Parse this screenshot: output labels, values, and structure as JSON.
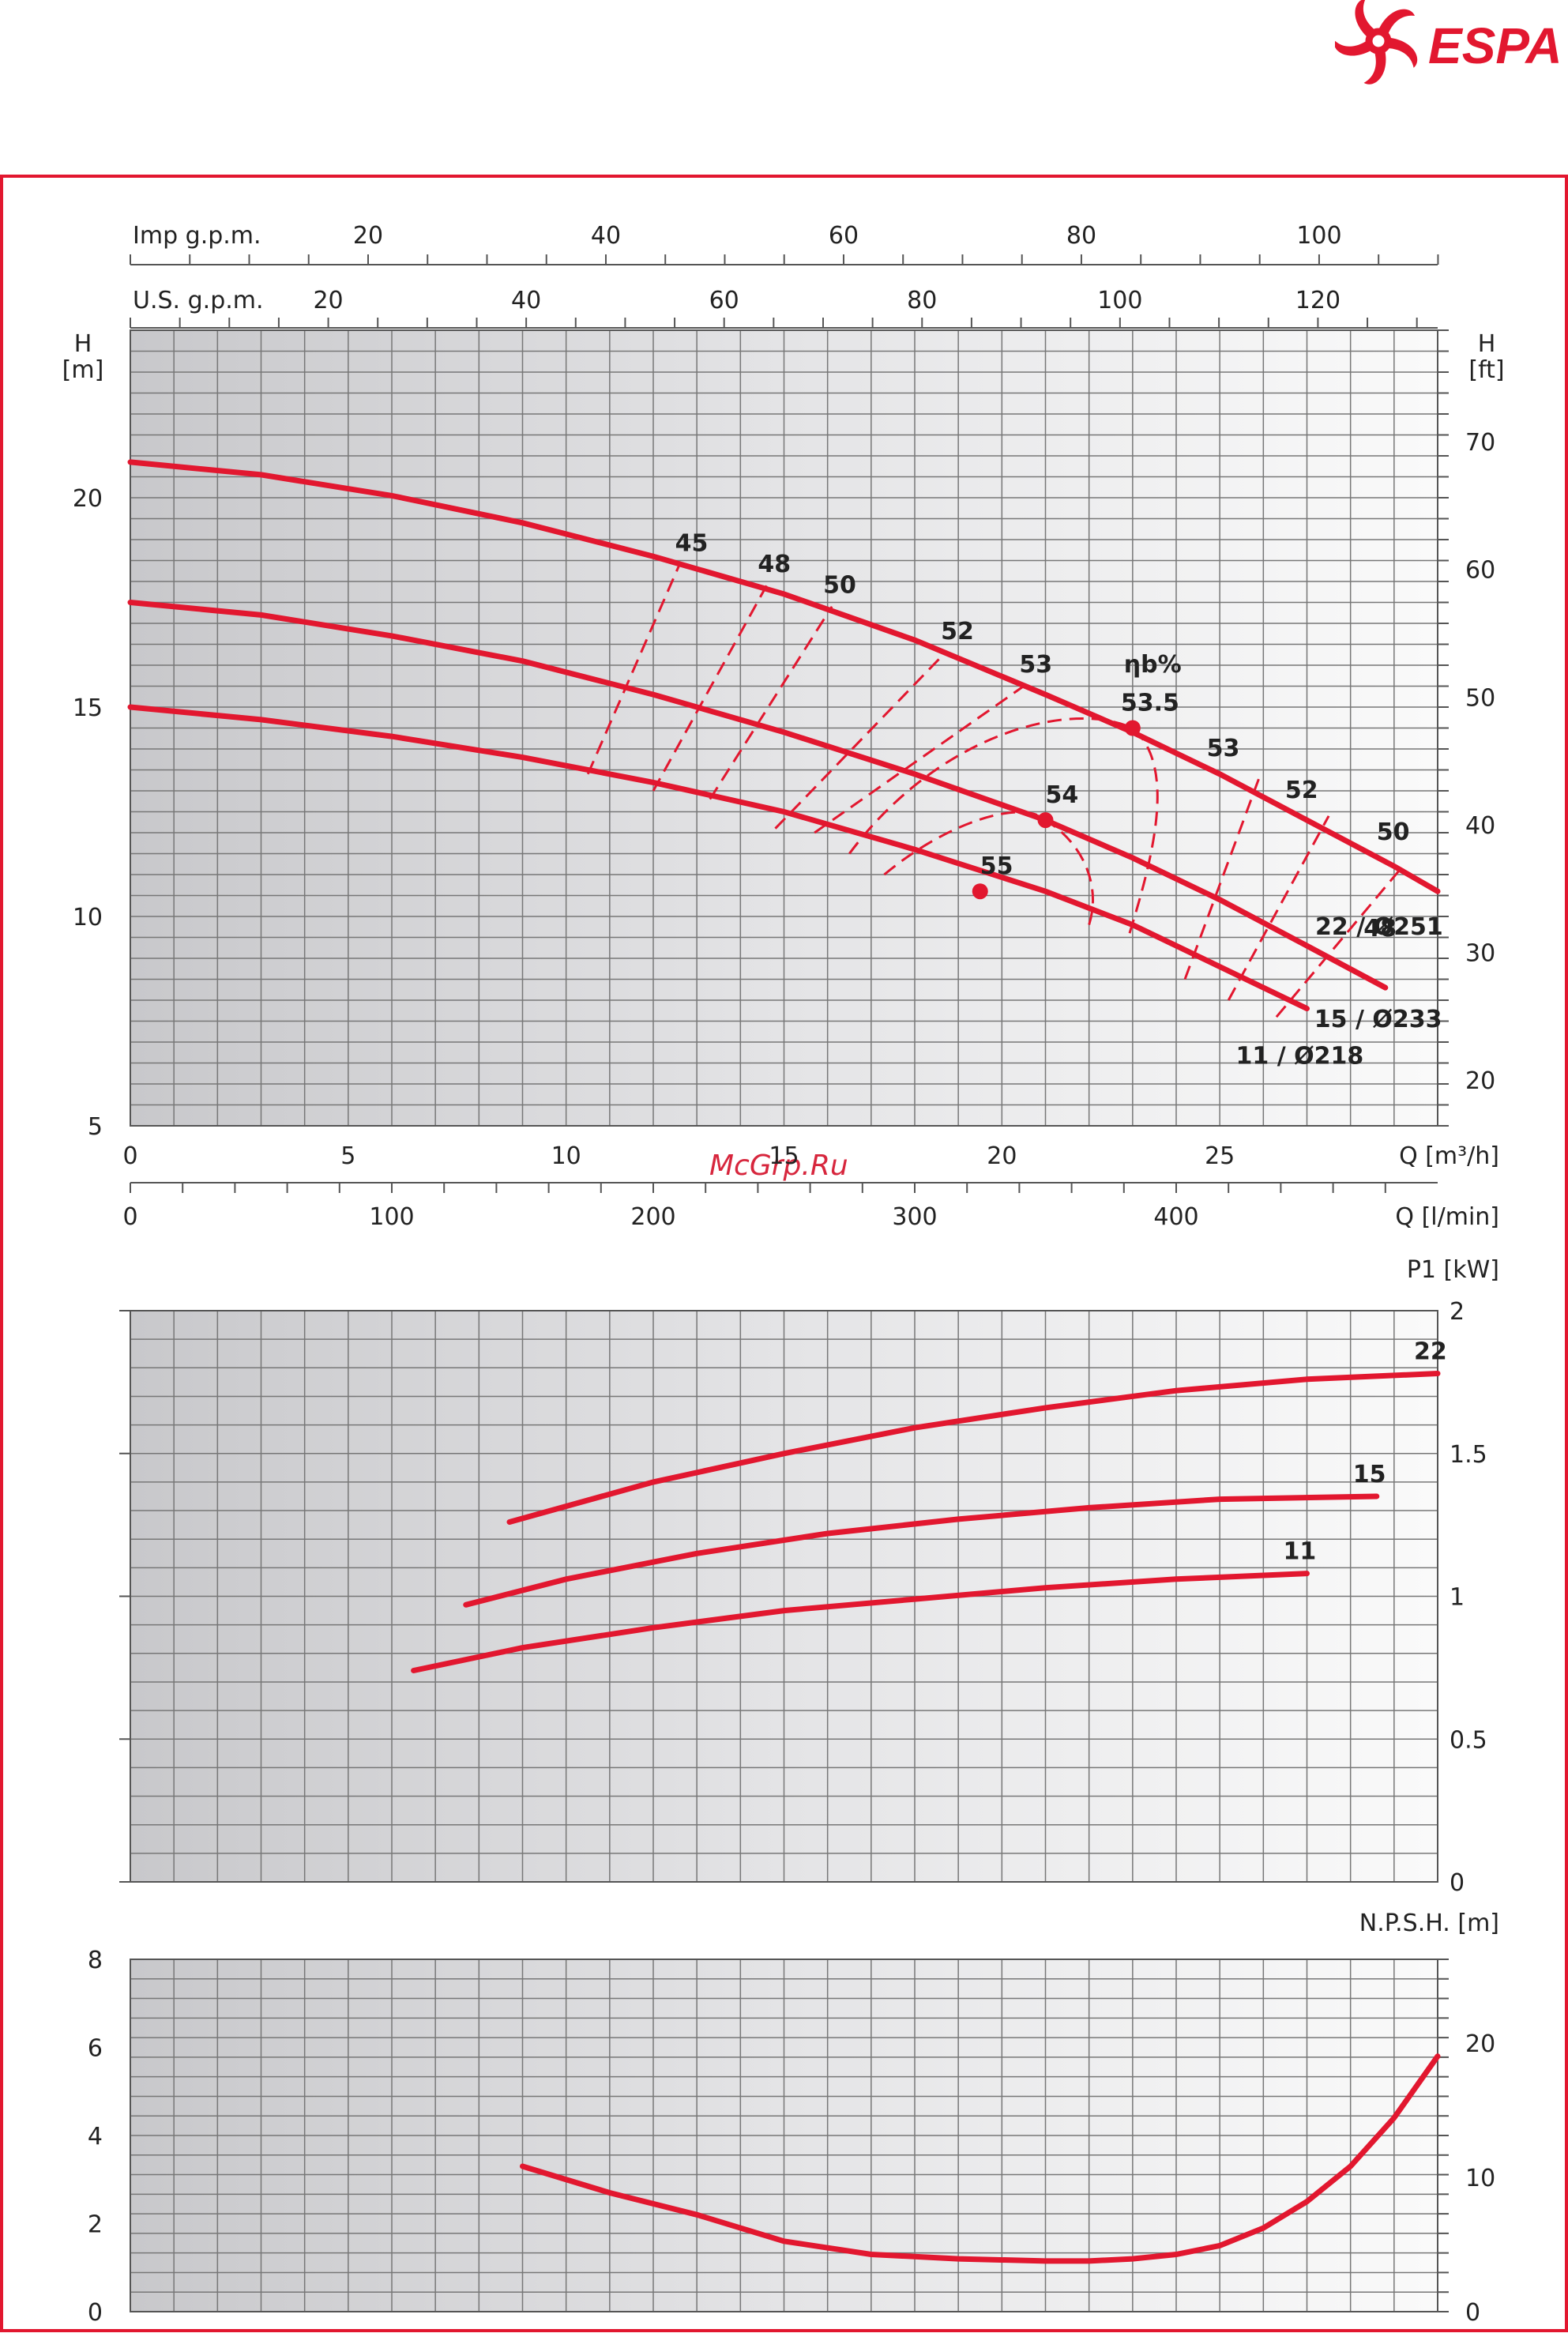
{
  "brand": {
    "name": "ESPA",
    "color": "#e2172f"
  },
  "watermark": "McGrp.Ru",
  "colors": {
    "curve": "#e2172f",
    "frame": "#e2172f",
    "grid": "#777777",
    "text": "#222222"
  },
  "chart_data": [
    {
      "type": "line",
      "id": "head",
      "x_unit": "Q [m³/h]",
      "x2_unit": "Q [l/min]",
      "top1_unit": "Imp g.p.m.",
      "top2_unit": "U.S. g.p.m.",
      "ylabel": "H\n[m]",
      "ylabel_right": "H\n[ft]",
      "xlim": [
        0,
        30
      ],
      "ylim": [
        5,
        24
      ],
      "x_ticks": [
        "0",
        "5",
        "10",
        "15",
        "20",
        "25"
      ],
      "x2_ticks": [
        "0",
        "100",
        "200",
        "300",
        "400"
      ],
      "top1_ticks": [
        "20",
        "40",
        "60",
        "80",
        "100"
      ],
      "top2_ticks": [
        "20",
        "40",
        "60",
        "80",
        "100",
        "120"
      ],
      "y_ticks": [
        "5",
        "10",
        "15",
        "20"
      ],
      "y_right_ticks": [
        "20",
        "30",
        "40",
        "50",
        "60",
        "70"
      ],
      "eff_label": "ηb%",
      "series": [
        {
          "name": "22 / Ø251",
          "x": [
            0,
            3,
            6,
            9,
            12,
            15,
            18,
            21,
            23,
            25,
            27,
            29,
            30
          ],
          "y": [
            20.85,
            20.55,
            20.05,
            19.4,
            18.6,
            17.7,
            16.6,
            15.3,
            14.4,
            13.4,
            12.3,
            11.2,
            10.6
          ]
        },
        {
          "name": "15 / Ø233",
          "x": [
            0,
            3,
            6,
            9,
            12,
            15,
            18,
            21,
            23,
            25,
            27,
            28.8
          ],
          "y": [
            17.5,
            17.2,
            16.7,
            16.1,
            15.3,
            14.4,
            13.4,
            12.3,
            11.4,
            10.4,
            9.3,
            8.3
          ]
        },
        {
          "name": "11 / Ø218",
          "x": [
            0,
            3,
            6,
            9,
            12,
            15,
            18,
            21,
            23,
            25,
            27
          ],
          "y": [
            15.0,
            14.7,
            14.3,
            13.8,
            13.2,
            12.5,
            11.6,
            10.6,
            9.8,
            8.8,
            7.8
          ]
        }
      ],
      "bep_points": [
        {
          "label": "53.5",
          "x": 23.0,
          "y": 14.5
        },
        {
          "label": "54",
          "x": 21.0,
          "y": 12.3
        },
        {
          "label": "55",
          "x": 19.5,
          "y": 10.6
        }
      ],
      "efficiency_labels": [
        "45",
        "48",
        "50",
        "52",
        "53",
        "53",
        "52",
        "50",
        "48"
      ]
    },
    {
      "type": "line",
      "id": "power",
      "ylabel": "P1 [kW]",
      "xlim": [
        0,
        30
      ],
      "ylim": [
        0,
        2
      ],
      "y_ticks": [
        "0",
        "0.5",
        "1",
        "1.5",
        "2"
      ],
      "series": [
        {
          "name": "22",
          "x": [
            8.7,
            12,
            15,
            18,
            21,
            24,
            27,
            30
          ],
          "y": [
            1.26,
            1.4,
            1.5,
            1.59,
            1.66,
            1.72,
            1.76,
            1.78
          ]
        },
        {
          "name": "15",
          "x": [
            7.7,
            10,
            13,
            16,
            19,
            22,
            25,
            28.6
          ],
          "y": [
            0.97,
            1.06,
            1.15,
            1.22,
            1.27,
            1.31,
            1.34,
            1.35
          ]
        },
        {
          "name": "11",
          "x": [
            6.5,
            9,
            12,
            15,
            18,
            21,
            24,
            27
          ],
          "y": [
            0.74,
            0.82,
            0.89,
            0.95,
            0.99,
            1.03,
            1.06,
            1.08
          ]
        }
      ]
    },
    {
      "type": "line",
      "id": "npsh",
      "ylabel": "N.P.S.H. [m]",
      "xlim": [
        0,
        30
      ],
      "ylim": [
        0,
        8
      ],
      "y_ticks": [
        "0",
        "2",
        "4",
        "6",
        "8"
      ],
      "y_right_ticks": [
        "0",
        "10",
        "20"
      ],
      "series": [
        {
          "name": "NPSH",
          "x": [
            9,
            11,
            13,
            15,
            17,
            19,
            21,
            22,
            23,
            24,
            25,
            26,
            27,
            28,
            29,
            30
          ],
          "y": [
            3.3,
            2.7,
            2.2,
            1.6,
            1.3,
            1.2,
            1.15,
            1.15,
            1.2,
            1.3,
            1.5,
            1.9,
            2.5,
            3.3,
            4.4,
            5.8
          ]
        }
      ]
    }
  ]
}
